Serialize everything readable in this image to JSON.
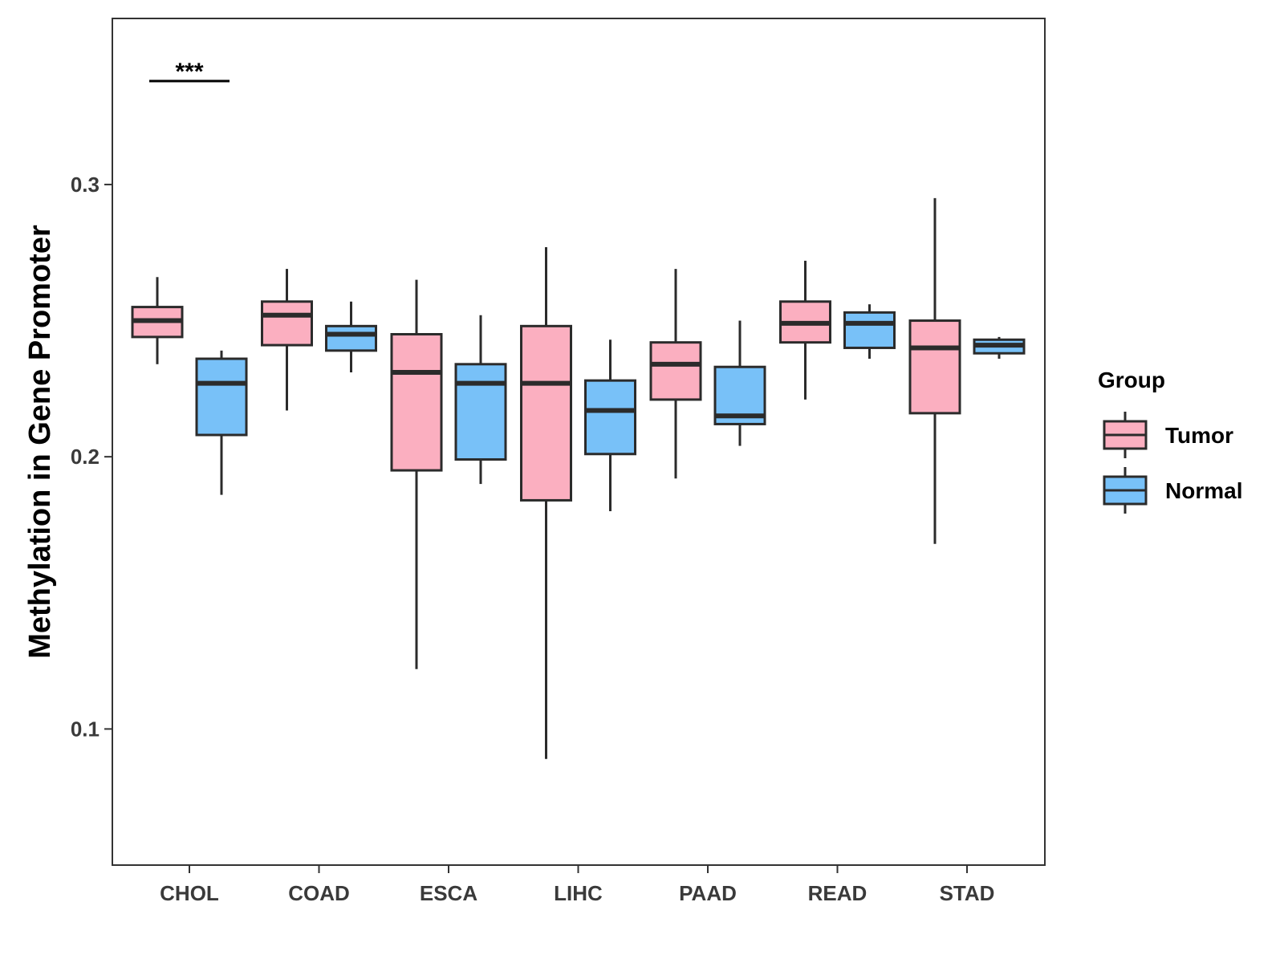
{
  "chart_data": {
    "type": "boxplot",
    "title": "",
    "xlabel": "",
    "ylabel": "Methylation in Gene Promoter",
    "ylim": [
      0.05,
      0.361
    ],
    "yticks": [
      0.1,
      0.2,
      0.3
    ],
    "ytick_labels": [
      "0.1",
      "0.2",
      "0.3"
    ],
    "grid": false,
    "categories": [
      "CHOL",
      "COAD",
      "ESCA",
      "LIHC",
      "PAAD",
      "READ",
      "STAD"
    ],
    "legend": {
      "title": "Group",
      "position": "right",
      "entries": [
        {
          "label": "Tumor",
          "color": "#FBAFC0"
        },
        {
          "label": "Normal",
          "color": "#78C1F8"
        }
      ]
    },
    "series": [
      {
        "name": "Tumor",
        "color": "#FBAFC0",
        "boxes": [
          {
            "min": 0.234,
            "q1": 0.244,
            "median": 0.25,
            "q3": 0.255,
            "max": 0.266
          },
          {
            "min": 0.217,
            "q1": 0.241,
            "median": 0.252,
            "q3": 0.257,
            "max": 0.269
          },
          {
            "min": 0.122,
            "q1": 0.195,
            "median": 0.231,
            "q3": 0.245,
            "max": 0.265
          },
          {
            "min": 0.089,
            "q1": 0.184,
            "median": 0.227,
            "q3": 0.248,
            "max": 0.277
          },
          {
            "min": 0.192,
            "q1": 0.221,
            "median": 0.234,
            "q3": 0.242,
            "max": 0.269
          },
          {
            "min": 0.221,
            "q1": 0.242,
            "median": 0.249,
            "q3": 0.257,
            "max": 0.272
          },
          {
            "min": 0.168,
            "q1": 0.216,
            "median": 0.24,
            "q3": 0.25,
            "max": 0.295
          }
        ]
      },
      {
        "name": "Normal",
        "color": "#78C1F8",
        "boxes": [
          {
            "min": 0.186,
            "q1": 0.208,
            "median": 0.227,
            "q3": 0.236,
            "max": 0.239
          },
          {
            "min": 0.231,
            "q1": 0.239,
            "median": 0.245,
            "q3": 0.248,
            "max": 0.257
          },
          {
            "min": 0.19,
            "q1": 0.199,
            "median": 0.227,
            "q3": 0.234,
            "max": 0.252
          },
          {
            "min": 0.18,
            "q1": 0.201,
            "median": 0.217,
            "q3": 0.228,
            "max": 0.243
          },
          {
            "min": 0.204,
            "q1": 0.212,
            "median": 0.215,
            "q3": 0.233,
            "max": 0.25
          },
          {
            "min": 0.236,
            "q1": 0.24,
            "median": 0.249,
            "q3": 0.253,
            "max": 0.256
          },
          {
            "min": 0.236,
            "q1": 0.238,
            "median": 0.241,
            "q3": 0.243,
            "max": 0.244
          }
        ]
      }
    ],
    "annotations": [
      {
        "text": "***",
        "category": "CHOL",
        "y": 0.338
      }
    ]
  }
}
